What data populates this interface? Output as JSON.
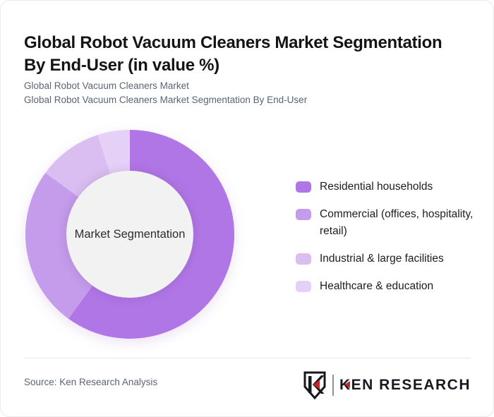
{
  "header": {
    "title": "Global Robot Vacuum Cleaners Market Segmentation\nBy End-User (in value %)",
    "subtitle_line1": "Global Robot Vacuum Cleaners Market",
    "subtitle_line2": "Global Robot Vacuum Cleaners Market Segmentation By End-User"
  },
  "chart_data": {
    "type": "pie",
    "donut": true,
    "title": "Global Robot Vacuum Cleaners Market Segmentation By End-User (in value %)",
    "center_label": "Market Segmentation",
    "categories": [
      "Residential households",
      "Commercial (offices, hospitality, retail)",
      "Industrial & large facilities",
      "Healthcare & education"
    ],
    "values": [
      60,
      25,
      10,
      5
    ],
    "unit": "%",
    "colors": [
      "#b176e6",
      "#c59bec",
      "#dabef2",
      "#e5d1f8"
    ],
    "start_angle_deg": 0,
    "direction": "clockwise",
    "legend_position": "right"
  },
  "footer": {
    "source": "Source: Ken Research Analysis",
    "logo_text": "KEN RESEARCH"
  },
  "colors": {
    "accent_red": "#c0272d",
    "subtitle_gray": "#5b6475",
    "center_circle": "#f2f2f2"
  }
}
